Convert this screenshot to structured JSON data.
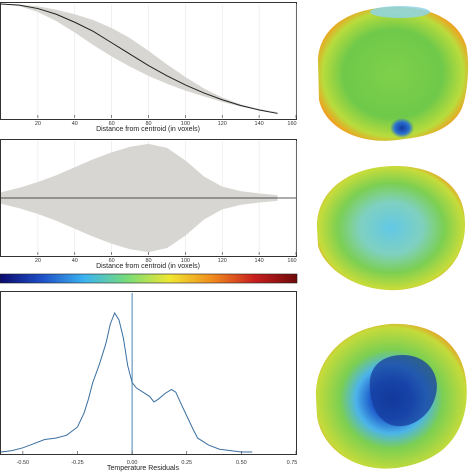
{
  "chart_data": [
    {
      "type": "line",
      "xlabel": "Distance from centroid (in voxels)",
      "ylabel": "",
      "xlim": [
        0,
        160
      ],
      "ylim": [
        0,
        1
      ],
      "x_ticks": [
        "20",
        "40",
        "60",
        "80",
        "100",
        "120",
        "140",
        "160"
      ],
      "grid": true,
      "series": [
        {
          "x": [
            0,
            10,
            20,
            30,
            40,
            50,
            60,
            70,
            80,
            90,
            100,
            110,
            120,
            130,
            140,
            150
          ],
          "values": [
            1.0,
            0.99,
            0.96,
            0.91,
            0.84,
            0.76,
            0.66,
            0.56,
            0.46,
            0.37,
            0.29,
            0.22,
            0.16,
            0.11,
            0.07,
            0.04
          ],
          "band_lower": [
            1.0,
            0.98,
            0.93,
            0.85,
            0.75,
            0.64,
            0.54,
            0.45,
            0.37,
            0.3,
            0.24,
            0.19,
            0.14,
            0.1,
            0.07,
            0.04
          ],
          "band_upper": [
            1.0,
            0.995,
            0.98,
            0.95,
            0.91,
            0.86,
            0.79,
            0.7,
            0.59,
            0.47,
            0.36,
            0.26,
            0.18,
            0.12,
            0.08,
            0.05
          ]
        }
      ]
    },
    {
      "type": "area",
      "xlabel": "Distance from centroid (in voxels)",
      "ylabel": "",
      "xlim": [
        0,
        160
      ],
      "ylim": [
        -1,
        1
      ],
      "x_ticks": [
        "20",
        "40",
        "60",
        "80",
        "100",
        "120",
        "140",
        "160"
      ],
      "grid": true,
      "series": [
        {
          "x": [
            0,
            10,
            20,
            30,
            40,
            50,
            60,
            70,
            80,
            90,
            100,
            110,
            120,
            130,
            140,
            150
          ],
          "values": [
            0.1,
            0.18,
            0.28,
            0.4,
            0.54,
            0.68,
            0.8,
            0.9,
            0.95,
            0.88,
            0.66,
            0.38,
            0.2,
            0.12,
            0.08,
            0.05
          ]
        }
      ]
    },
    {
      "type": "heatmap",
      "colormap": [
        "#0a0a6e",
        "#1e50c8",
        "#3cb4f0",
        "#78dc78",
        "#f0e632",
        "#f08c1e",
        "#c81e1e",
        "#6e0a0a"
      ]
    },
    {
      "type": "line",
      "xlabel": "Temperature Residuals",
      "ylabel": "",
      "xlim": [
        -0.6,
        0.75
      ],
      "ylim": [
        0,
        1
      ],
      "x_ticks": [
        "-0.50",
        "-0.25",
        "0.00",
        "0.25",
        "0.50",
        "0.75"
      ],
      "vertical_line": 0.0,
      "series": [
        {
          "x": [
            -0.6,
            -0.55,
            -0.5,
            -0.45,
            -0.4,
            -0.35,
            -0.3,
            -0.25,
            -0.22,
            -0.2,
            -0.18,
            -0.15,
            -0.12,
            -0.1,
            -0.08,
            -0.06,
            -0.04,
            -0.02,
            0.0,
            0.02,
            0.05,
            0.08,
            0.1,
            0.12,
            0.15,
            0.18,
            0.2,
            0.22,
            0.25,
            0.28,
            0.3,
            0.35,
            0.4,
            0.45,
            0.5,
            0.55
          ],
          "values": [
            0.0,
            0.01,
            0.03,
            0.06,
            0.09,
            0.1,
            0.12,
            0.18,
            0.28,
            0.38,
            0.5,
            0.63,
            0.78,
            0.92,
            1.0,
            0.95,
            0.82,
            0.62,
            0.5,
            0.46,
            0.43,
            0.4,
            0.36,
            0.38,
            0.42,
            0.45,
            0.43,
            0.36,
            0.26,
            0.16,
            0.1,
            0.05,
            0.02,
            0.01,
            0.0,
            0.0
          ]
        }
      ]
    }
  ],
  "renderings": [
    {
      "name": "temperature-map-top"
    },
    {
      "name": "temperature-map-middle"
    },
    {
      "name": "temperature-map-bottom"
    }
  ]
}
